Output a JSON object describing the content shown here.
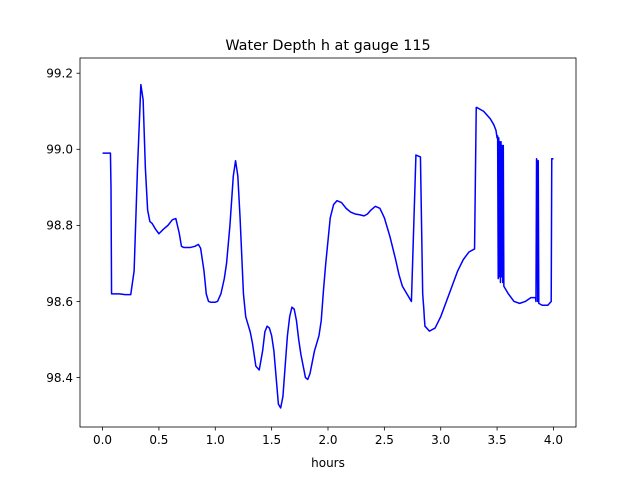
{
  "chart_data": {
    "type": "line",
    "title": "Water Depth h at gauge 115",
    "xlabel": "hours",
    "ylabel": "",
    "xlim": [
      -0.2,
      4.2
    ],
    "ylim": [
      98.27,
      99.24
    ],
    "x_ticks": [
      0.0,
      0.5,
      1.0,
      1.5,
      2.0,
      2.5,
      3.0,
      3.5,
      4.0
    ],
    "x_tick_labels": [
      "0.0",
      "0.5",
      "1.0",
      "1.5",
      "2.0",
      "2.5",
      "3.0",
      "3.5",
      "4.0"
    ],
    "y_ticks": [
      98.4,
      98.6,
      98.8,
      99.0,
      99.2
    ],
    "y_tick_labels": [
      "98.4",
      "98.6",
      "98.8",
      "99.0",
      "99.2"
    ],
    "grid": false,
    "legend": "none",
    "series": [
      {
        "color": "#0000ff",
        "x": [
          0.0,
          0.07,
          0.075,
          0.08,
          0.15,
          0.2,
          0.25,
          0.28,
          0.31,
          0.34,
          0.36,
          0.38,
          0.4,
          0.42,
          0.44,
          0.47,
          0.5,
          0.54,
          0.58,
          0.62,
          0.65,
          0.68,
          0.7,
          0.72,
          0.74,
          0.78,
          0.82,
          0.85,
          0.87,
          0.9,
          0.92,
          0.94,
          0.96,
          0.98,
          1.0,
          1.02,
          1.05,
          1.08,
          1.1,
          1.13,
          1.16,
          1.18,
          1.2,
          1.22,
          1.235,
          1.25,
          1.27,
          1.29,
          1.31,
          1.33,
          1.36,
          1.39,
          1.42,
          1.44,
          1.46,
          1.48,
          1.5,
          1.52,
          1.54,
          1.56,
          1.58,
          1.6,
          1.62,
          1.64,
          1.66,
          1.68,
          1.7,
          1.72,
          1.74,
          1.76,
          1.78,
          1.8,
          1.82,
          1.84,
          1.86,
          1.88,
          1.9,
          1.92,
          1.94,
          1.96,
          1.98,
          2.0,
          2.02,
          2.05,
          2.08,
          2.12,
          2.16,
          2.2,
          2.24,
          2.28,
          2.32,
          2.35,
          2.38,
          2.42,
          2.46,
          2.5,
          2.55,
          2.6,
          2.63,
          2.66,
          2.7,
          2.74,
          2.78,
          2.82,
          2.84,
          2.845,
          2.85,
          2.855,
          2.86,
          2.9,
          2.95,
          3.0,
          3.05,
          3.1,
          3.15,
          3.2,
          3.25,
          3.3,
          3.315,
          3.32,
          3.35,
          3.38,
          3.41,
          3.44,
          3.47,
          3.49,
          3.495,
          3.5,
          3.505,
          3.51,
          3.515,
          3.52,
          3.525,
          3.53,
          3.535,
          3.54,
          3.545,
          3.55,
          3.555,
          3.56,
          3.6,
          3.65,
          3.7,
          3.75,
          3.8,
          3.84,
          3.845,
          3.85,
          3.855,
          3.86,
          3.865,
          3.87,
          3.9,
          3.95,
          3.98,
          3.985,
          3.99,
          4.0
        ],
        "y": [
          98.99,
          98.99,
          98.9,
          98.62,
          98.62,
          98.618,
          98.618,
          98.68,
          98.95,
          99.17,
          99.13,
          98.95,
          98.84,
          98.81,
          98.805,
          98.79,
          98.778,
          98.79,
          98.8,
          98.815,
          98.818,
          98.78,
          98.745,
          98.742,
          98.742,
          98.742,
          98.745,
          98.75,
          98.74,
          98.68,
          98.62,
          98.6,
          98.598,
          98.598,
          98.598,
          98.6,
          98.62,
          98.66,
          98.7,
          98.8,
          98.93,
          98.97,
          98.93,
          98.82,
          98.72,
          98.62,
          98.56,
          98.54,
          98.52,
          98.49,
          98.43,
          98.42,
          98.47,
          98.52,
          98.535,
          98.53,
          98.51,
          98.47,
          98.4,
          98.33,
          98.32,
          98.35,
          98.43,
          98.51,
          98.56,
          98.585,
          98.58,
          98.55,
          98.5,
          98.46,
          98.43,
          98.4,
          98.395,
          98.41,
          98.44,
          98.47,
          98.49,
          98.51,
          98.55,
          98.63,
          98.7,
          98.76,
          98.82,
          98.855,
          98.865,
          98.86,
          98.845,
          98.835,
          98.83,
          98.828,
          98.825,
          98.83,
          98.84,
          98.85,
          98.845,
          98.82,
          98.77,
          98.71,
          98.67,
          98.64,
          98.62,
          98.6,
          98.985,
          98.98,
          98.62,
          98.6,
          98.58,
          98.555,
          98.535,
          98.522,
          98.53,
          98.56,
          98.6,
          98.64,
          98.68,
          98.71,
          98.73,
          98.738,
          99.11,
          99.11,
          99.105,
          99.1,
          99.09,
          99.08,
          99.065,
          99.05,
          99.04,
          99.03,
          99.035,
          98.66,
          99.03,
          98.665,
          99.02,
          98.65,
          99.02,
          98.665,
          99.01,
          98.65,
          99.01,
          98.64,
          98.62,
          98.6,
          98.595,
          98.6,
          98.61,
          98.61,
          98.6,
          98.975,
          98.97,
          98.6,
          98.97,
          98.595,
          98.59,
          98.59,
          98.6,
          98.975,
          98.975,
          98.975
        ]
      }
    ]
  }
}
